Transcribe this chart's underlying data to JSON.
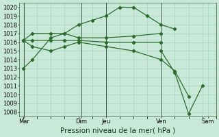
{
  "title": "Pression niveau de la mer( hPa )",
  "background_color": "#c8e8d8",
  "grid_color": "#b0d8c8",
  "line_color": "#2d6b2d",
  "ylim": [
    1007.5,
    1020.5
  ],
  "series": [
    {
      "x": [
        0,
        0.33,
        1.0,
        1.5,
        2.0,
        2.5,
        3.0,
        3.5,
        4.0,
        4.5,
        5.0,
        5.5
      ],
      "y": [
        1013,
        1014,
        1016.5,
        1017,
        1018,
        1018.5,
        1019,
        1020,
        1020,
        1019,
        1018,
        1017.5
      ],
      "has_markers": true
    },
    {
      "x": [
        0,
        0.33,
        1.0,
        1.5,
        2.0,
        3.0,
        4.0,
        5.0
      ],
      "y": [
        1016.2,
        1017,
        1017,
        1017,
        1016.5,
        1016.5,
        1016.7,
        1017
      ],
      "has_markers": true
    },
    {
      "x": [
        0,
        0.33,
        1.0,
        1.5,
        2.0,
        3.0,
        4.0,
        5.0
      ],
      "y": [
        1016.2,
        1016.2,
        1016.2,
        1016.2,
        1016.2,
        1016.0,
        1016.0,
        1016.0
      ],
      "has_markers": true
    },
    {
      "x": [
        0,
        0.33,
        1.0,
        1.5,
        2.0,
        3.0,
        4.0,
        5.0,
        5.5,
        6.0
      ],
      "y": [
        1016.2,
        1015.5,
        1015.0,
        1015.5,
        1016.0,
        1015.5,
        1015.0,
        1014.0,
        1012.7,
        1009.8
      ],
      "has_markers": true
    },
    {
      "x": [
        5.0,
        5.5,
        6.0,
        6.5
      ],
      "y": [
        1015,
        1012.5,
        1007.8,
        1011
      ],
      "has_markers": true
    }
  ],
  "vlines_x": [
    0.02,
    2.1,
    3.0,
    5.0
  ],
  "xtick_positions": [
    0.02,
    2.1,
    3.0,
    5.0,
    6.7
  ],
  "xtick_labels": [
    "Mar",
    "Dim",
    "Jeu",
    "Ven",
    "Sam"
  ],
  "xlim": [
    -0.15,
    7.0
  ],
  "title_fontsize": 7.5,
  "tick_fontsize": 6
}
